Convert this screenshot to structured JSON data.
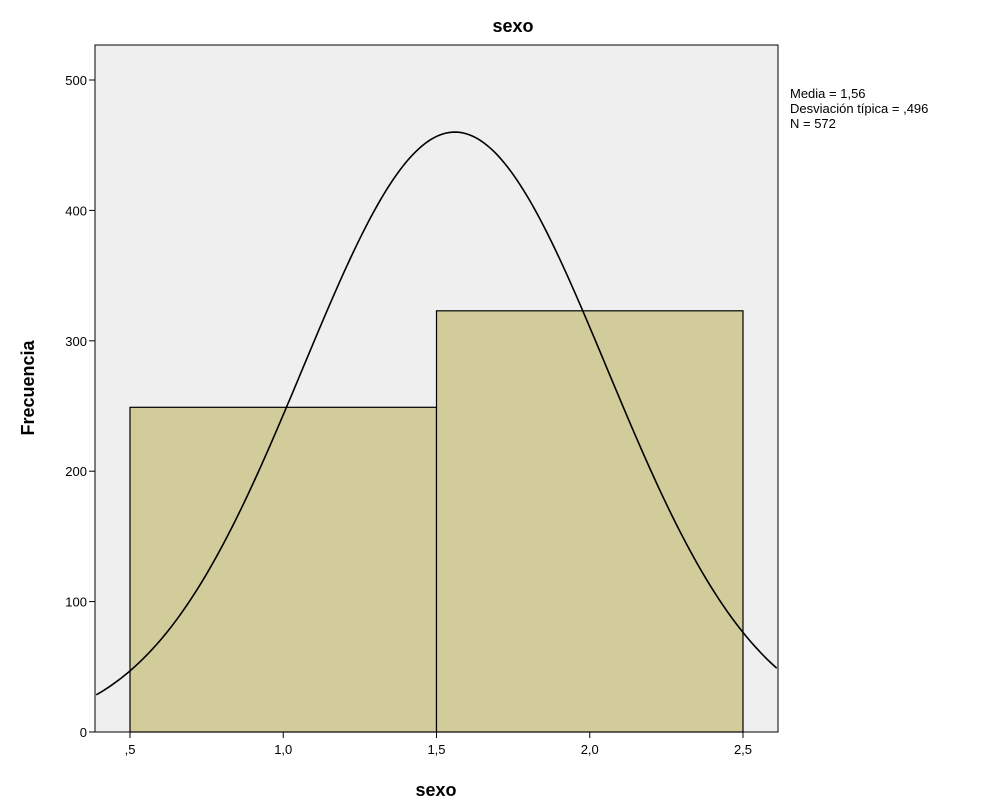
{
  "chart_data": {
    "type": "bar",
    "title": "sexo",
    "xlabel": "sexo",
    "ylabel": "Frecuencia",
    "bins": [
      {
        "x_start": 0.5,
        "x_end": 1.5,
        "value": 249
      },
      {
        "x_start": 1.5,
        "x_end": 2.5,
        "value": 323
      }
    ],
    "xlim": [
      0.39,
      2.61
    ],
    "ylim": [
      0,
      500
    ],
    "x_ticks": [
      0.5,
      1.0,
      1.5,
      2.0,
      2.5
    ],
    "x_tick_labels": [
      ",5",
      "1,0",
      "1,5",
      "2,0",
      "2,5"
    ],
    "y_ticks": [
      0,
      100,
      200,
      300,
      400,
      500
    ],
    "y_tick_labels": [
      "0",
      "100",
      "200",
      "300",
      "400",
      "500"
    ],
    "normal_curve": {
      "mean": 1.56,
      "sd": 0.496,
      "n": 572,
      "bin_width": 1
    },
    "stats_text": [
      "Media = 1,56",
      "Desviación típica = ,496",
      "N = 572"
    ],
    "grid": false,
    "legend": "none",
    "colors": {
      "plot_background": "#efefef",
      "bar_fill": "#d2cc9b",
      "bar_stroke": "#000000",
      "curve": "#000000"
    }
  }
}
